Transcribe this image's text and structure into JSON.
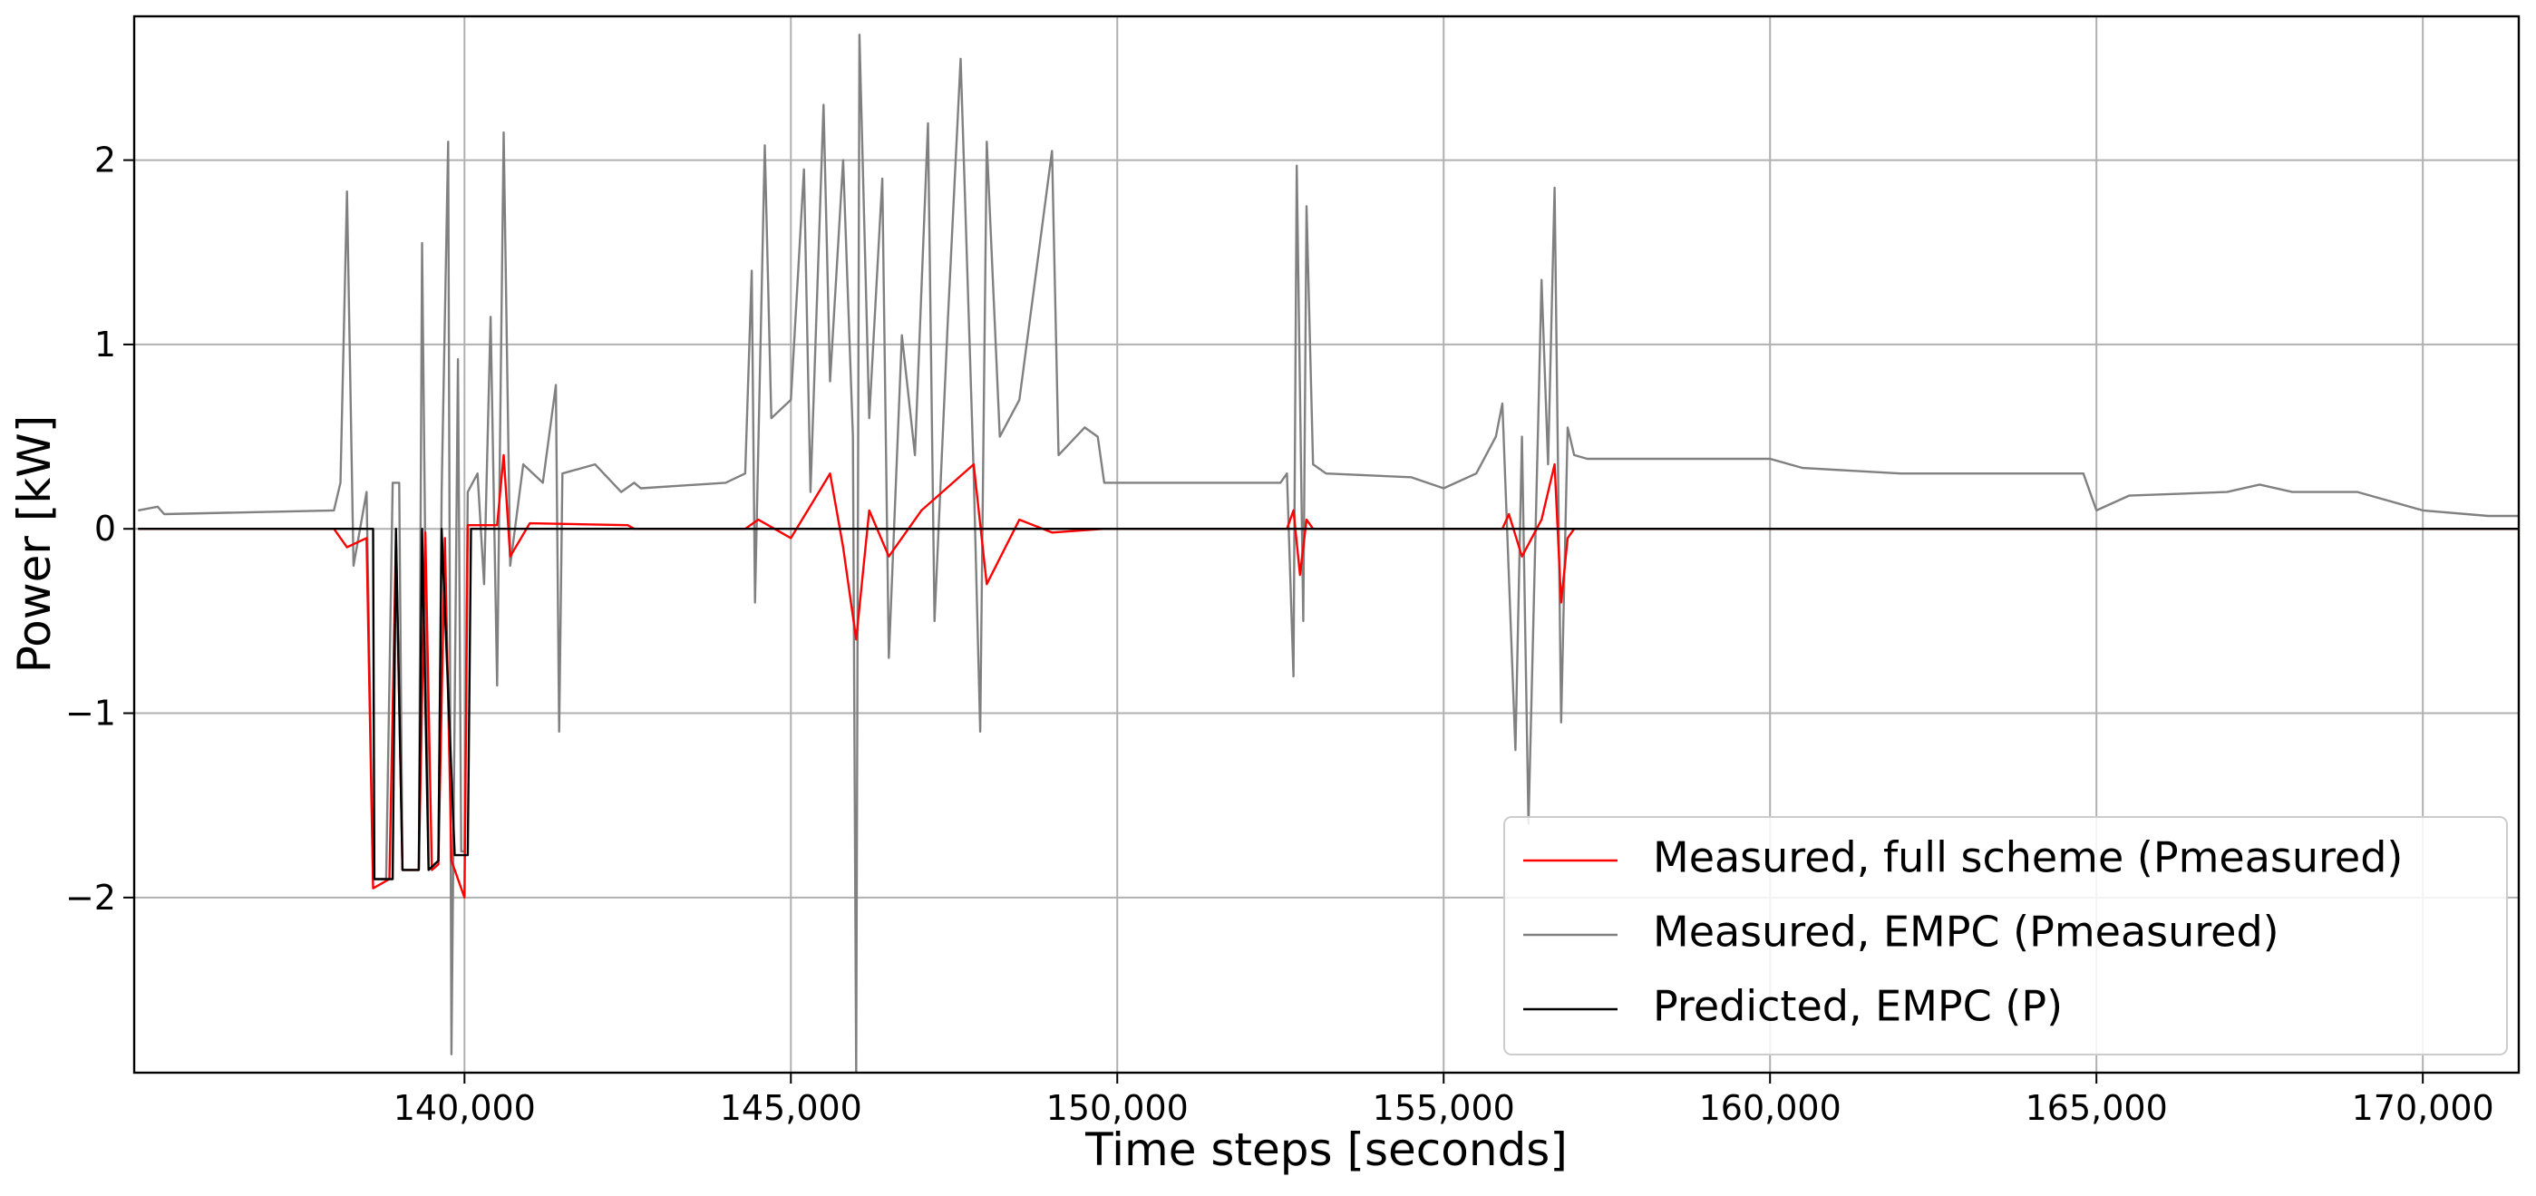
{
  "chart_data": {
    "type": "line",
    "xlabel": "Time steps [seconds]",
    "ylabel": "Power [kW]",
    "xlim": [
      134940,
      171470
    ],
    "ylim": [
      -2.95,
      2.78
    ],
    "xticks": [
      {
        "value": 140000,
        "label": "140,000"
      },
      {
        "value": 145000,
        "label": "145,000"
      },
      {
        "value": 150000,
        "label": "150,000"
      },
      {
        "value": 155000,
        "label": "155,000"
      },
      {
        "value": 160000,
        "label": "160,000"
      },
      {
        "value": 165000,
        "label": "165,000"
      },
      {
        "value": 170000,
        "label": "170,000"
      }
    ],
    "yticks": [
      {
        "value": -2,
        "label": "−2"
      },
      {
        "value": -1,
        "label": "−1"
      },
      0,
      1,
      2
    ],
    "grid": true,
    "legend": "lower right",
    "series": [
      {
        "name": "Measured, EMPC (Pmeasured)",
        "color": "#808080",
        "x": [
          135000,
          135300,
          135400,
          138000,
          138100,
          138200,
          138300,
          138500,
          138600,
          138800,
          138900,
          139000,
          139050,
          139300,
          139350,
          139450,
          139600,
          139650,
          139750,
          139800,
          139900,
          139950,
          140000,
          140050,
          140200,
          140300,
          140400,
          140500,
          140600,
          140700,
          140900,
          141200,
          141400,
          141450,
          141500,
          142000,
          142400,
          142600,
          142700,
          144000,
          144300,
          144400,
          144450,
          144600,
          144700,
          145000,
          145200,
          145300,
          145500,
          145600,
          145800,
          145950,
          146000,
          146050,
          146200,
          146400,
          146500,
          146700,
          146900,
          147100,
          147200,
          147400,
          147600,
          147800,
          147900,
          148000,
          148200,
          148500,
          149000,
          149100,
          149500,
          149700,
          149800,
          152500,
          152600,
          152700,
          152750,
          152850,
          152900,
          153000,
          153200,
          154500,
          155000,
          155500,
          155800,
          155900,
          156100,
          156200,
          156300,
          156450,
          156500,
          156600,
          156700,
          156800,
          156900,
          157000,
          157200,
          160000,
          160500,
          162000,
          164000,
          164800,
          165000,
          165500,
          167000,
          167500,
          168000,
          169000,
          170000,
          171000,
          171470
        ],
        "values": [
          0.1,
          0.12,
          0.08,
          0.1,
          0.25,
          1.83,
          -0.2,
          0.2,
          -1.9,
          -1.9,
          0.25,
          0.25,
          -1.85,
          -1.85,
          1.55,
          -1.85,
          -1.8,
          0.2,
          2.1,
          -2.85,
          0.92,
          -1.75,
          -1.75,
          0.2,
          0.3,
          -0.3,
          1.15,
          -0.85,
          2.15,
          -0.2,
          0.35,
          0.25,
          0.78,
          -1.1,
          0.3,
          0.35,
          0.2,
          0.25,
          0.22,
          0.25,
          0.3,
          1.4,
          -0.4,
          2.08,
          0.6,
          0.7,
          1.95,
          0.2,
          2.3,
          0.8,
          2.0,
          0.5,
          -2.95,
          2.68,
          0.6,
          1.9,
          -0.7,
          1.05,
          0.4,
          2.2,
          -0.5,
          1.1,
          2.55,
          0.3,
          -1.1,
          2.1,
          0.5,
          0.7,
          2.05,
          0.4,
          0.55,
          0.5,
          0.25,
          0.25,
          0.3,
          -0.8,
          1.97,
          -0.5,
          1.75,
          0.35,
          0.3,
          0.28,
          0.22,
          0.3,
          0.5,
          0.68,
          -1.2,
          0.5,
          -1.6,
          0.6,
          1.35,
          0.35,
          1.85,
          -1.05,
          0.55,
          0.4,
          0.38,
          0.38,
          0.33,
          0.3,
          0.3,
          0.3,
          0.1,
          0.18,
          0.2,
          0.24,
          0.2,
          0.2,
          0.1,
          0.07,
          0.07
        ]
      },
      {
        "name": "Measured, full scheme (Pmeasured)",
        "color": "#ff0000",
        "x": [
          135000,
          138000,
          138200,
          138500,
          138600,
          138850,
          138950,
          139050,
          139300,
          139400,
          139500,
          139600,
          139700,
          139800,
          140000,
          140050,
          140500,
          140600,
          140700,
          141000,
          142500,
          142600,
          144300,
          144500,
          145000,
          145600,
          145800,
          146000,
          146200,
          146500,
          147000,
          147800,
          148000,
          148500,
          149000,
          149800,
          152600,
          152700,
          152800,
          152900,
          153000,
          155900,
          156000,
          156200,
          156500,
          156700,
          156800,
          156900,
          157000,
          171470
        ],
        "values": [
          0,
          0,
          -0.1,
          -0.05,
          -1.95,
          -1.9,
          -0.05,
          -1.85,
          -1.85,
          -0.02,
          -1.85,
          -1.82,
          -0.05,
          -1.8,
          -2.0,
          0.02,
          0.02,
          0.4,
          -0.15,
          0.03,
          0.02,
          0,
          0,
          0.05,
          -0.05,
          0.3,
          -0.1,
          -0.6,
          0.1,
          -0.15,
          0.1,
          0.35,
          -0.3,
          0.05,
          -0.02,
          0,
          0,
          0.1,
          -0.25,
          0.05,
          0,
          0,
          0.08,
          -0.15,
          0.05,
          0.35,
          -0.4,
          -0.05,
          0,
          0
        ]
      },
      {
        "name": "Predicted, EMPC (P)",
        "color": "#000000",
        "x": [
          135000,
          138600,
          138620,
          138900,
          138950,
          139050,
          139300,
          139350,
          139450,
          139600,
          139650,
          139850,
          140050,
          140100,
          171470
        ],
        "values": [
          0,
          0,
          -1.9,
          -1.9,
          0,
          -1.85,
          -1.85,
          0,
          -1.85,
          -1.8,
          0,
          -1.77,
          -1.77,
          0,
          0
        ]
      }
    ]
  }
}
